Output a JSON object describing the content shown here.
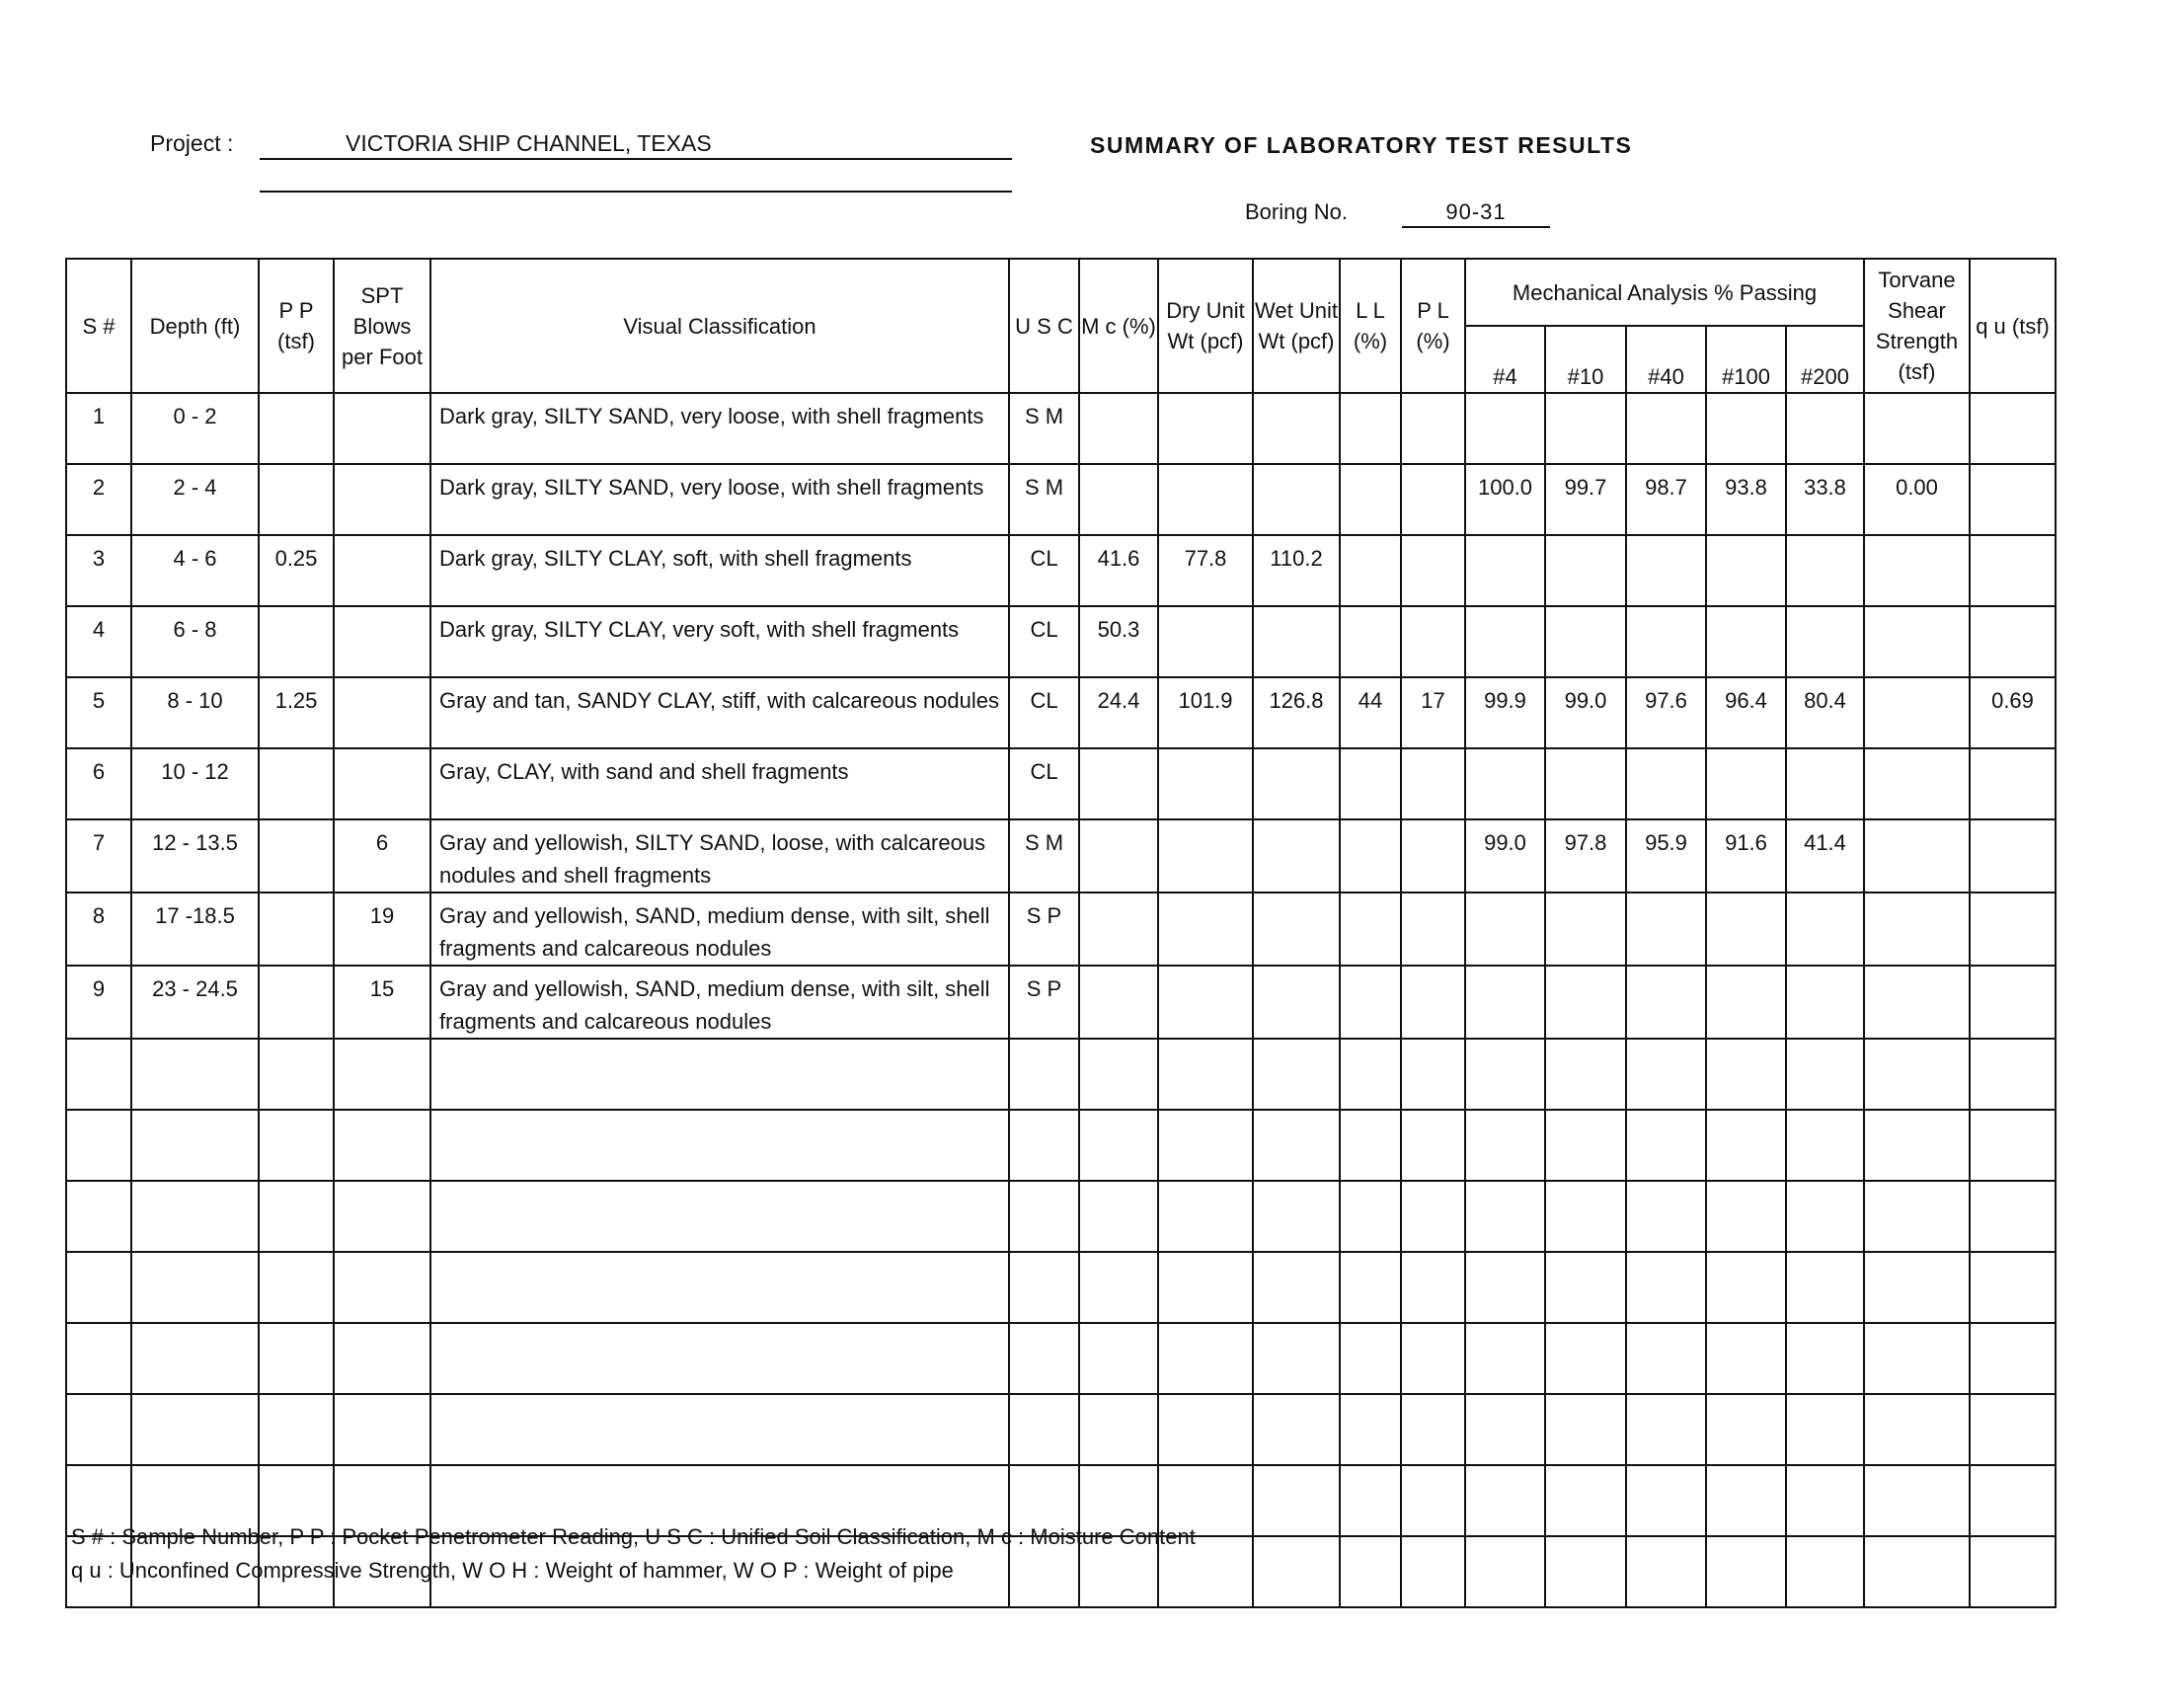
{
  "header": {
    "project_label": "Project  :",
    "project_value": "VICTORIA SHIP CHANNEL, TEXAS",
    "title": "SUMMARY OF LABORATORY TEST RESULTS",
    "boring_label": "Boring No.",
    "boring_value": "90-31"
  },
  "columns": {
    "s": "S #",
    "depth": "Depth (ft)",
    "pp": "P P (tsf)",
    "spt": "SPT Blows per Foot",
    "visual": "Visual Classification",
    "usc": "U S C",
    "mc": "M c (%)",
    "dry": "Dry Unit Wt (pcf)",
    "wet": "Wet Unit Wt (pcf)",
    "ll": "L L (%)",
    "pl": "P L (%)",
    "mech": "Mechanical Analysis % Passing",
    "sieves": [
      "#4",
      "#10",
      "#40",
      "#100",
      "#200"
    ],
    "torvane": "Torvane Shear Strength (tsf)",
    "qu": "q u (tsf)"
  },
  "rows": [
    {
      "s": "1",
      "depth": "0 - 2",
      "pp": "",
      "spt": "",
      "visual": "Dark gray, SILTY SAND, very loose, with shell fragments",
      "usc": "S M",
      "mc": "",
      "dry": "",
      "wet": "",
      "ll": "",
      "pl": "",
      "p4": "",
      "p10": "",
      "p40": "",
      "p100": "",
      "p200": "",
      "torvane": "",
      "qu": ""
    },
    {
      "s": "2",
      "depth": "2 - 4",
      "pp": "",
      "spt": "",
      "visual": "Dark gray, SILTY SAND, very loose, with shell fragments",
      "usc": "S M",
      "mc": "",
      "dry": "",
      "wet": "",
      "ll": "",
      "pl": "",
      "p4": "100.0",
      "p10": "99.7",
      "p40": "98.7",
      "p100": "93.8",
      "p200": "33.8",
      "torvane": "0.00",
      "qu": ""
    },
    {
      "s": "3",
      "depth": "4 - 6",
      "pp": "0.25",
      "spt": "",
      "visual": "Dark gray, SILTY CLAY, soft, with shell fragments",
      "usc": "CL",
      "mc": "41.6",
      "dry": "77.8",
      "wet": "110.2",
      "ll": "",
      "pl": "",
      "p4": "",
      "p10": "",
      "p40": "",
      "p100": "",
      "p200": "",
      "torvane": "",
      "qu": ""
    },
    {
      "s": "4",
      "depth": "6 - 8",
      "pp": "",
      "spt": "",
      "visual": "Dark gray, SILTY CLAY, very soft, with shell fragments",
      "usc": "CL",
      "mc": "50.3",
      "dry": "",
      "wet": "",
      "ll": "",
      "pl": "",
      "p4": "",
      "p10": "",
      "p40": "",
      "p100": "",
      "p200": "",
      "torvane": "",
      "qu": ""
    },
    {
      "s": "5",
      "depth": "8 - 10",
      "pp": "1.25",
      "spt": "",
      "visual": "Gray and tan, SANDY CLAY, stiff, with calcareous nodules",
      "usc": "CL",
      "mc": "24.4",
      "dry": "101.9",
      "wet": "126.8",
      "ll": "44",
      "pl": "17",
      "p4": "99.9",
      "p10": "99.0",
      "p40": "97.6",
      "p100": "96.4",
      "p200": "80.4",
      "torvane": "",
      "qu": "0.69"
    },
    {
      "s": "6",
      "depth": "10 - 12",
      "pp": "",
      "spt": "",
      "visual": "Gray, CLAY, with sand and shell fragments",
      "usc": "CL",
      "mc": "",
      "dry": "",
      "wet": "",
      "ll": "",
      "pl": "",
      "p4": "",
      "p10": "",
      "p40": "",
      "p100": "",
      "p200": "",
      "torvane": "",
      "qu": ""
    },
    {
      "s": "7",
      "depth": "12 - 13.5",
      "pp": "",
      "spt": "6",
      "visual": "Gray and yellowish, SILTY SAND, loose, with calcareous nodules and shell fragments",
      "usc": "S M",
      "mc": "",
      "dry": "",
      "wet": "",
      "ll": "",
      "pl": "",
      "p4": "99.0",
      "p10": "97.8",
      "p40": "95.9",
      "p100": "91.6",
      "p200": "41.4",
      "torvane": "",
      "qu": ""
    },
    {
      "s": "8",
      "depth": "17 -18.5",
      "pp": "",
      "spt": "19",
      "visual": "Gray and yellowish, SAND, medium dense, with silt, shell fragments and calcareous nodules",
      "usc": "S P",
      "mc": "",
      "dry": "",
      "wet": "",
      "ll": "",
      "pl": "",
      "p4": "",
      "p10": "",
      "p40": "",
      "p100": "",
      "p200": "",
      "torvane": "",
      "qu": ""
    },
    {
      "s": "9",
      "depth": "23 - 24.5",
      "pp": "",
      "spt": "15",
      "visual": "Gray and yellowish, SAND, medium dense, with silt, shell fragments and calcareous nodules",
      "usc": "S P",
      "mc": "",
      "dry": "",
      "wet": "",
      "ll": "",
      "pl": "",
      "p4": "",
      "p10": "",
      "p40": "",
      "p100": "",
      "p200": "",
      "torvane": "",
      "qu": ""
    }
  ],
  "legend": {
    "line1": "S # : Sample Number, P P : Pocket Penetrometer Reading, U S C : Unified Soil Classification, M c : Moisture Content",
    "line2": "q u : Unconfined Compressive Strength, W O H : Weight of hammer, W O P : Weight of pipe"
  }
}
